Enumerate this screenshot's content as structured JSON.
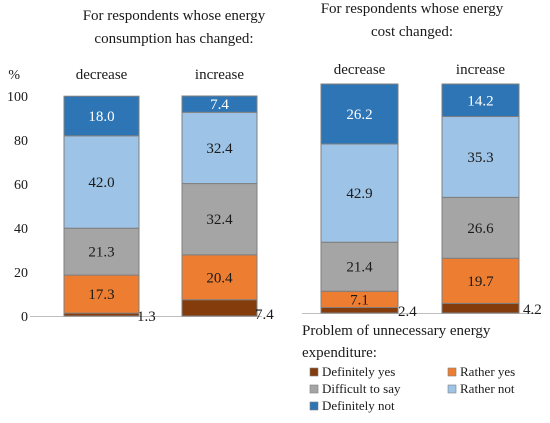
{
  "chart_data": [
    {
      "type": "bar",
      "stacked": true,
      "title": "For respondents whose energy consumption has changed:",
      "title_lines": [
        "For respondents whose energy",
        "consumption has changed:"
      ],
      "ylabel": "%",
      "ylim": [
        0,
        100
      ],
      "yticks": [
        0,
        20,
        40,
        60,
        80,
        100
      ],
      "grid": false,
      "categories": [
        "decrease",
        "increase"
      ],
      "series": [
        {
          "name": "Definitely yes",
          "values": [
            1.3,
            7.4
          ]
        },
        {
          "name": "Rather yes",
          "values": [
            17.3,
            20.4
          ]
        },
        {
          "name": "Difficult to say",
          "values": [
            21.3,
            32.4
          ]
        },
        {
          "name": "Rather not",
          "values": [
            42.0,
            32.4
          ]
        },
        {
          "name": "Definitely not",
          "values": [
            18.0,
            7.4
          ]
        }
      ],
      "data_labels": [
        [
          "1.3",
          "17.3",
          "21.3",
          "42.0",
          "18.0"
        ],
        [
          "7.4",
          "20.4",
          "32.4",
          "32.4",
          "7.4"
        ]
      ]
    },
    {
      "type": "bar",
      "stacked": true,
      "title": "For respondents whose energy cost changed:",
      "title_lines": [
        "For respondents whose energy",
        "cost changed:"
      ],
      "ylim": [
        0,
        100
      ],
      "grid": false,
      "categories": [
        "decrease",
        "increase"
      ],
      "series": [
        {
          "name": "Definitely yes",
          "values": [
            2.4,
            4.2
          ]
        },
        {
          "name": "Rather yes",
          "values": [
            7.1,
            19.7
          ]
        },
        {
          "name": "Difficult to say",
          "values": [
            21.4,
            26.6
          ]
        },
        {
          "name": "Rather not",
          "values": [
            42.9,
            35.3
          ]
        },
        {
          "name": "Definitely not",
          "values": [
            26.2,
            14.2
          ]
        }
      ],
      "data_labels": [
        [
          "2.4",
          "7.1",
          "21.4",
          "42.9",
          "26.2"
        ],
        [
          "4.2",
          "19.7",
          "26.6",
          "35.3",
          "14.2"
        ]
      ]
    }
  ],
  "legend": {
    "title_lines": [
      "Problem of unnecessary energy",
      "expenditure:"
    ],
    "placement": "bottom-right",
    "items": [
      "Definitely yes",
      "Rather yes",
      "Difficult to say",
      "Rather not",
      "Definitely not"
    ]
  },
  "colors": {
    "Definitely yes": "#843c0c",
    "Rather yes": "#ed7d31",
    "Difficult to say": "#a5a5a5",
    "Rather not": "#9dc3e6",
    "Definitely not": "#2e75b6",
    "outline": "#7f7f7f",
    "axis": "#bfbfbf"
  }
}
